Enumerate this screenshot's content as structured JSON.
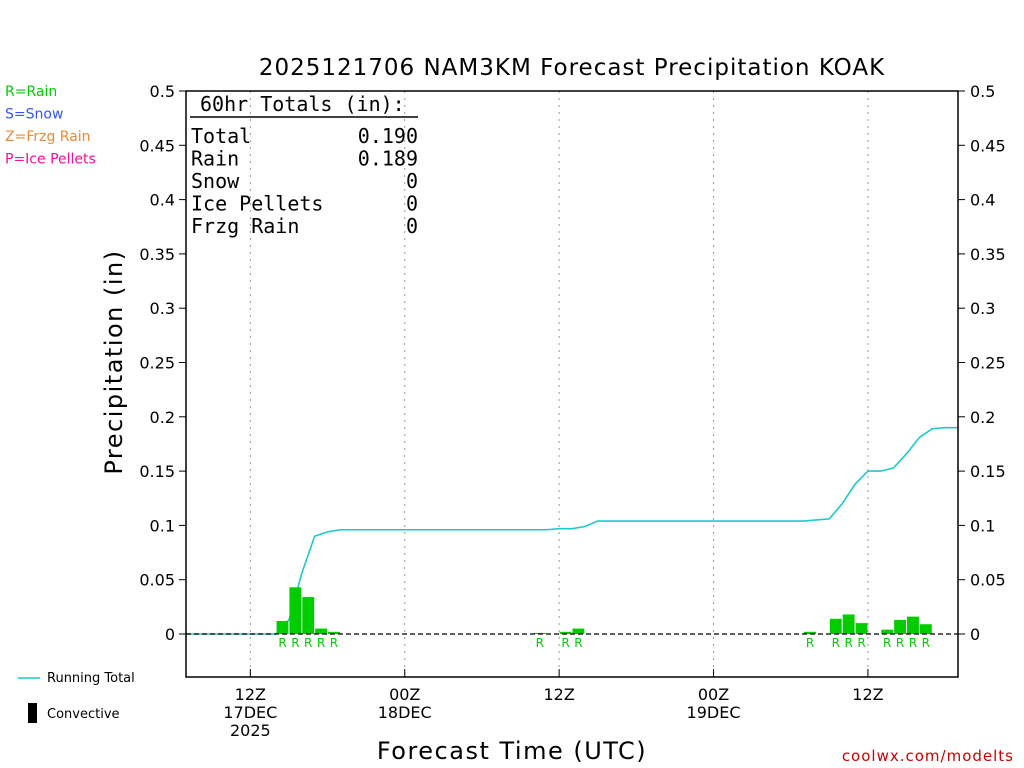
{
  "chart_data": {
    "type": "bar",
    "title": "2025121706 NAM3KM Forecast Precipitation KOAK",
    "xlabel": "Forecast Time (UTC)",
    "ylabel": "Precipitation (in)",
    "ylim": [
      -0.04,
      0.5
    ],
    "yticks": [
      {
        "v": 0.5,
        "label": "0.5"
      },
      {
        "v": 0.45,
        "label": "0.45"
      },
      {
        "v": 0.4,
        "label": "0.4"
      },
      {
        "v": 0.35,
        "label": "0.35"
      },
      {
        "v": 0.3,
        "label": "0.3"
      },
      {
        "v": 0.25,
        "label": "0.25"
      },
      {
        "v": 0.2,
        "label": "0.2"
      },
      {
        "v": 0.15,
        "label": "0.15"
      },
      {
        "v": 0.1,
        "label": "0.1"
      },
      {
        "v": 0.05,
        "label": "0.05"
      },
      {
        "v": 0,
        "label": "0"
      }
    ],
    "xlim_hours": [
      1,
      61
    ],
    "xticks": [
      {
        "h": 6,
        "lines": [
          "12Z",
          "17DEC",
          "2025"
        ]
      },
      {
        "h": 18,
        "lines": [
          "00Z",
          "18DEC"
        ]
      },
      {
        "h": 30,
        "lines": [
          "12Z"
        ]
      },
      {
        "h": 42,
        "lines": [
          "00Z",
          "19DEC"
        ]
      },
      {
        "h": 54,
        "lines": [
          "12Z"
        ]
      }
    ],
    "hourly_precip": [
      {
        "h": 9,
        "v": 0.012,
        "ptype": "R"
      },
      {
        "h": 10,
        "v": 0.043,
        "ptype": "R"
      },
      {
        "h": 11,
        "v": 0.034,
        "ptype": "R"
      },
      {
        "h": 12,
        "v": 0.005,
        "ptype": "R"
      },
      {
        "h": 13,
        "v": 0.002,
        "ptype": "R"
      },
      {
        "h": 29,
        "v": 0.001,
        "ptype": "R"
      },
      {
        "h": 31,
        "v": 0.002,
        "ptype": "R"
      },
      {
        "h": 32,
        "v": 0.005,
        "ptype": "R"
      },
      {
        "h": 50,
        "v": 0.002,
        "ptype": "R"
      },
      {
        "h": 52,
        "v": 0.014,
        "ptype": "R"
      },
      {
        "h": 53,
        "v": 0.018,
        "ptype": "R"
      },
      {
        "h": 54,
        "v": 0.01,
        "ptype": "R"
      },
      {
        "h": 56,
        "v": 0.004,
        "ptype": "R"
      },
      {
        "h": 57,
        "v": 0.013,
        "ptype": "R"
      },
      {
        "h": 58,
        "v": 0.016,
        "ptype": "R"
      },
      {
        "h": 59,
        "v": 0.009,
        "ptype": "R"
      }
    ],
    "running_total": {
      "name": "Running Total",
      "color": "#1ec9c9",
      "points": [
        [
          1,
          0
        ],
        [
          8,
          0
        ],
        [
          9,
          0.013
        ],
        [
          10,
          0.056
        ],
        [
          11,
          0.09
        ],
        [
          12,
          0.094
        ],
        [
          13,
          0.096
        ],
        [
          29,
          0.096
        ],
        [
          30,
          0.097
        ],
        [
          31,
          0.097
        ],
        [
          32,
          0.099
        ],
        [
          33,
          0.104
        ],
        [
          49,
          0.104
        ],
        [
          50,
          0.105
        ],
        [
          51,
          0.106
        ],
        [
          52,
          0.12
        ],
        [
          53,
          0.138
        ],
        [
          54,
          0.15
        ],
        [
          55,
          0.15
        ],
        [
          56,
          0.153
        ],
        [
          57,
          0.166
        ],
        [
          58,
          0.181
        ],
        [
          59,
          0.189
        ],
        [
          60,
          0.19
        ],
        [
          61,
          0.19
        ]
      ]
    },
    "bar_color": "#00cc00"
  },
  "totals_box": {
    "heading": "60hr Totals (in):",
    "rows": [
      {
        "label": "Total",
        "value": "0.190"
      },
      {
        "label": "Rain",
        "value": "0.189"
      },
      {
        "label": "Snow",
        "value": "0"
      },
      {
        "label": "Ice Pellets",
        "value": "0"
      },
      {
        "label": "Frzg Rain",
        "value": "0"
      }
    ]
  },
  "ptype_legend": [
    {
      "text": "R=Rain",
      "color": "#00cc00"
    },
    {
      "text": "S=Snow",
      "color": "#3355ee"
    },
    {
      "text": "Z=Frzg Rain",
      "color": "#ee8833"
    },
    {
      "text": "P=Ice Pellets",
      "color": "#ee1199"
    }
  ],
  "bottom_legend": {
    "running_total": "Running Total",
    "convective": "Convective"
  },
  "credit": "coolwx.com/modelts"
}
